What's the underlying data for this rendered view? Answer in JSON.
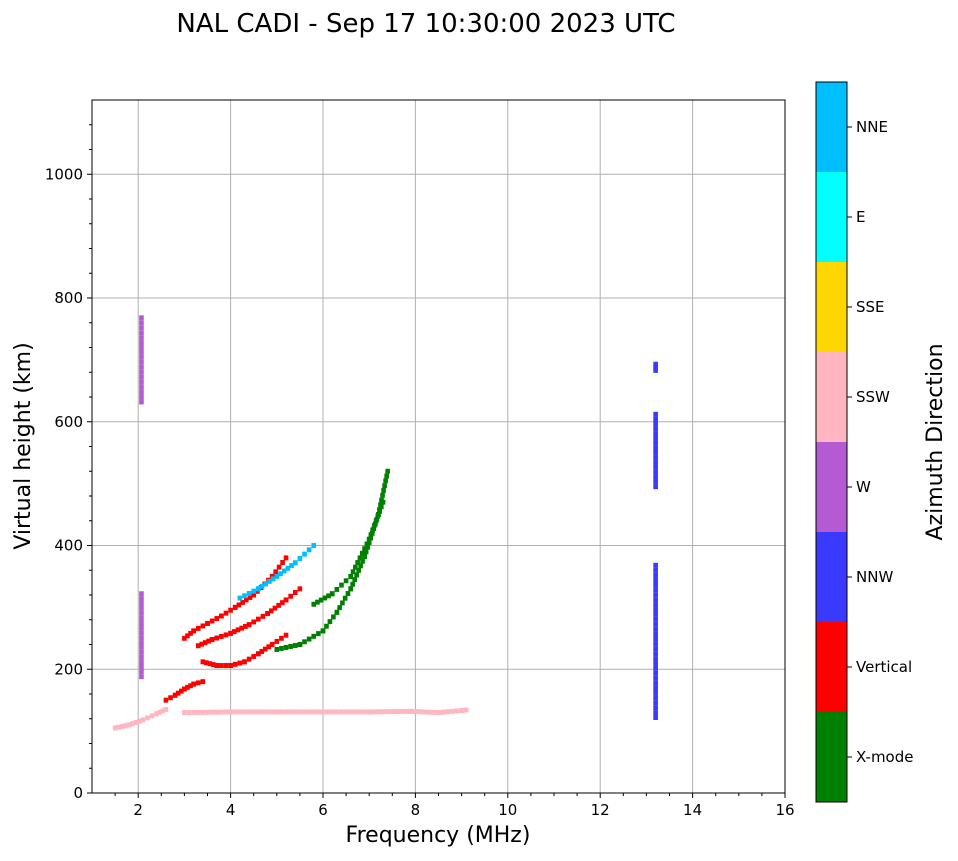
{
  "chart_data": {
    "type": "scatter",
    "title": "NAL CADI - Sep 17 10:30:00 2023 UTC",
    "xlabel": "Frequency (MHz)",
    "ylabel": "Virtual height (km)",
    "xlim": [
      1.0,
      16.0
    ],
    "ylim": [
      0,
      1120
    ],
    "x_ticks": [
      2,
      4,
      6,
      8,
      10,
      12,
      14,
      16
    ],
    "y_ticks": [
      0,
      200,
      400,
      600,
      800,
      1000
    ],
    "grid": true,
    "colorbar": {
      "title": "Azimuth Direction",
      "categories": [
        {
          "name": "X-mode",
          "color": "#008000"
        },
        {
          "name": "Vertical",
          "color": "#ff0000"
        },
        {
          "name": "NNW",
          "color": "#3a3aff"
        },
        {
          "name": "W",
          "color": "#b45bd4"
        },
        {
          "name": "SSW",
          "color": "#ffb6c1"
        },
        {
          "name": "SSE",
          "color": "#ffd700"
        },
        {
          "name": "E",
          "color": "#00ffff"
        },
        {
          "name": "NNE",
          "color": "#00bfff"
        }
      ]
    },
    "series": [
      {
        "name": "Vertical",
        "traces": [
          {
            "f": [
              3.0,
              3.2,
              3.5,
              3.8,
              4.1,
              4.5,
              4.9,
              5.2
            ],
            "h": [
              250,
              262,
              274,
              286,
              300,
              320,
              350,
              380
            ]
          },
          {
            "f": [
              3.3,
              3.6,
              4.0,
              4.4,
              4.8,
              5.2,
              5.5
            ],
            "h": [
              238,
              248,
              258,
              272,
              290,
              312,
              330
            ]
          },
          {
            "f": [
              3.4,
              3.7,
              4.0,
              4.3,
              4.6,
              4.9,
              5.2
            ],
            "h": [
              212,
              206,
              206,
              212,
              225,
              240,
              255
            ]
          },
          {
            "f": [
              2.6,
              2.8,
              3.0,
              3.2,
              3.4
            ],
            "h": [
              150,
              158,
              168,
              176,
              180
            ]
          }
        ]
      },
      {
        "name": "X-mode",
        "traces": [
          {
            "f": [
              5.0,
              5.5,
              6.0,
              6.3,
              6.6,
              6.9,
              7.2,
              7.4
            ],
            "h": [
              232,
              240,
              262,
              292,
              330,
              382,
              450,
              520
            ]
          },
          {
            "f": [
              5.8,
              6.2,
              6.6,
              7.0,
              7.3
            ],
            "h": [
              305,
              322,
              350,
              410,
              470
            ]
          }
        ]
      },
      {
        "name": "SSW",
        "traces": [
          {
            "f": [
              3.0,
              4.0,
              5.0,
              6.0,
              7.0,
              7.9,
              8.5,
              9.1
            ],
            "h": [
              130,
              131,
              131,
              131,
              131,
              132,
              130,
              134
            ]
          },
          {
            "f": [
              1.5,
              1.8,
              2.1,
              2.4,
              2.6
            ],
            "h": [
              105,
              110,
              118,
              128,
              135
            ]
          }
        ]
      },
      {
        "name": "NNE",
        "traces": [
          {
            "f": [
              4.2,
              4.6,
              5.0,
              5.4,
              5.8
            ],
            "h": [
              315,
              330,
              350,
              372,
              400
            ]
          }
        ]
      },
      {
        "name": "NNW",
        "traces": [
          {
            "f": [
              13.2,
              13.2
            ],
            "h": [
              122,
              368
            ]
          },
          {
            "f": [
              13.2,
              13.2
            ],
            "h": [
              495,
              612
            ]
          },
          {
            "f": [
              13.2,
              13.2
            ],
            "h": [
              683,
              693
            ]
          }
        ]
      },
      {
        "name": "W",
        "traces": [
          {
            "f": [
              2.07,
              2.07
            ],
            "h": [
              632,
              768
            ]
          },
          {
            "f": [
              2.07,
              2.07
            ],
            "h": [
              188,
              322
            ]
          }
        ]
      }
    ]
  }
}
